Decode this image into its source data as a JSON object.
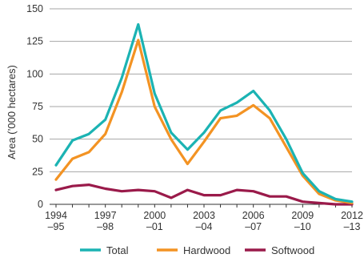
{
  "chart_data": {
    "type": "line",
    "title": "",
    "xlabel": "",
    "ylabel": "Area (’000 hectares)",
    "ylim": [
      0,
      150
    ],
    "yticks": [
      0,
      25,
      50,
      75,
      100,
      125,
      150
    ],
    "xlim": [
      1994,
      2012
    ],
    "xticks": [
      {
        "value": 1994,
        "line1": "1994",
        "line2": "–95"
      },
      {
        "value": 1997,
        "line1": "1997",
        "line2": "–98"
      },
      {
        "value": 2000,
        "line1": "2000",
        "line2": "–01"
      },
      {
        "value": 2003,
        "line1": "2003",
        "line2": "–04"
      },
      {
        "value": 2006,
        "line1": "2006",
        "line2": "–07"
      },
      {
        "value": 2009,
        "line1": "2009",
        "line2": "–10"
      },
      {
        "value": 2012,
        "line1": "2012",
        "line2": "–13"
      }
    ],
    "x": [
      1994,
      1995,
      1996,
      1997,
      1998,
      1999,
      2000,
      2001,
      2002,
      2003,
      2004,
      2005,
      2006,
      2007,
      2008,
      2009,
      2010,
      2011,
      2012
    ],
    "series": [
      {
        "name": "Total",
        "color": "#1bb3b3",
        "values": [
          30,
          49,
          54,
          65,
          97,
          138,
          85,
          55,
          42,
          55,
          72,
          78,
          87,
          72,
          50,
          24,
          10,
          4,
          2
        ]
      },
      {
        "name": "Hardwood",
        "color": "#f39323",
        "values": [
          19,
          35,
          40,
          54,
          86,
          126,
          75,
          50,
          31,
          48,
          66,
          68,
          76,
          66,
          44,
          22,
          8,
          3,
          1
        ]
      },
      {
        "name": "Softwood",
        "color": "#9a1a4a",
        "values": [
          11,
          14,
          15,
          12,
          10,
          11,
          10,
          5,
          11,
          7,
          7,
          11,
          10,
          6,
          6,
          2,
          1,
          0,
          0
        ]
      }
    ],
    "grid": "horizontal",
    "legend_position": "bottom"
  }
}
